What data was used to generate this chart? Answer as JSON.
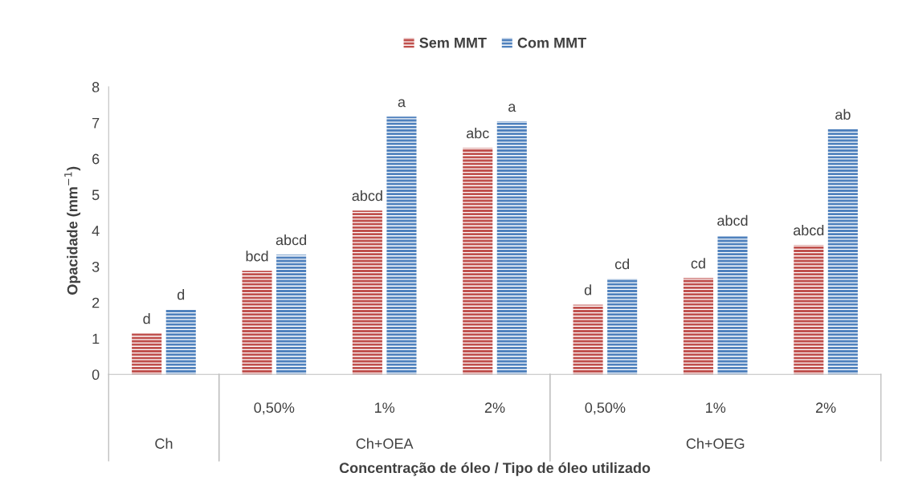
{
  "chart_data": {
    "type": "bar",
    "categories": [
      null,
      "0,50%",
      "1%",
      "2%",
      "0,50%",
      "1%",
      "2%"
    ],
    "series": [
      {
        "name": "Sem MMT",
        "color": "#c0504d",
        "values": [
          1.14,
          2.88,
          4.56,
          6.3,
          1.94,
          2.68,
          3.6
        ],
        "value_labels": [
          "d",
          "bcd",
          "abcd",
          "abc",
          "d",
          "cd",
          "abcd"
        ]
      },
      {
        "name": "Com MMT",
        "color": "#4f81bd",
        "values": [
          1.81,
          3.33,
          7.17,
          7.04,
          2.66,
          3.87,
          6.82
        ],
        "value_labels": [
          "d",
          "abcd",
          "a",
          "a",
          "cd",
          "abcd",
          "ab"
        ]
      }
    ],
    "ylabel": "Opacidade (mm$^{−1}$)",
    "xlabel": "Concentração de óleo / Tipo de óleo utilizado",
    "annotations": [
      "Ch",
      "Ch+OEA",
      "Ch+OEG"
    ],
    "ylim": [
      0,
      8
    ],
    "yticks": [
      0,
      1,
      2,
      3,
      4,
      5,
      6,
      7,
      8
    ],
    "legend": "top",
    "grid": false
  }
}
